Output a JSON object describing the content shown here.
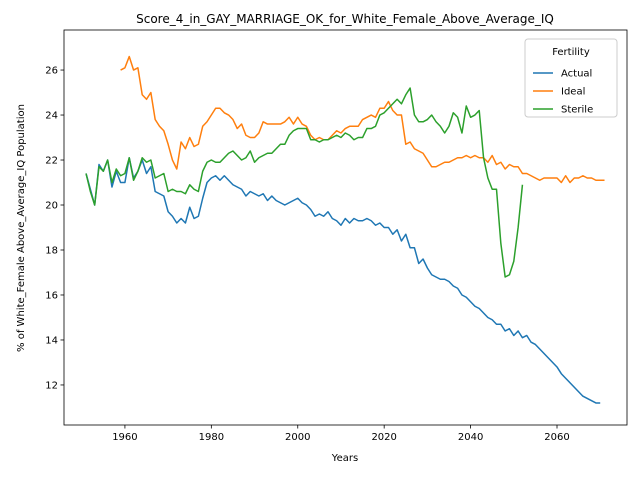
{
  "chart_data": {
    "type": "line",
    "title": "Score_4_in_GAY_MARRIAGE_OK_for_White_Female_Above_Average_IQ",
    "xlabel": "Years",
    "ylabel": "% of White_Female Above_Average_IQ Population",
    "legend_title": "Fertility",
    "legend": "upper right",
    "xlim": [
      1945.9,
      2076.2
    ],
    "ylim": [
      10.22,
      27.78
    ],
    "xticks": [
      1960,
      1980,
      2000,
      2020,
      2040,
      2060
    ],
    "yticks": [
      12,
      14,
      16,
      18,
      20,
      22,
      24,
      26
    ],
    "x": [
      1951,
      1952,
      1953,
      1954,
      1955,
      1956,
      1957,
      1958,
      1959,
      1960,
      1961,
      1962,
      1963,
      1964,
      1965,
      1966,
      1967,
      1968,
      1969,
      1970,
      1971,
      1972,
      1973,
      1974,
      1975,
      1976,
      1977,
      1978,
      1979,
      1980,
      1981,
      1982,
      1983,
      1984,
      1985,
      1986,
      1987,
      1988,
      1989,
      1990,
      1991,
      1992,
      1993,
      1994,
      1995,
      1996,
      1997,
      1998,
      1999,
      2000,
      2001,
      2002,
      2003,
      2004,
      2005,
      2006,
      2007,
      2008,
      2009,
      2010,
      2011,
      2012,
      2013,
      2014,
      2015,
      2016,
      2017,
      2018,
      2019,
      2020,
      2021,
      2022,
      2023,
      2024,
      2025,
      2026,
      2027,
      2028,
      2029,
      2030,
      2031,
      2032,
      2033,
      2034,
      2035,
      2036,
      2037,
      2038,
      2039,
      2040,
      2041,
      2042,
      2043,
      2044,
      2045,
      2046,
      2047,
      2048,
      2049,
      2050,
      2051,
      2052,
      2053,
      2054,
      2055,
      2056,
      2057,
      2058,
      2059,
      2060,
      2061,
      2062,
      2063,
      2064,
      2065,
      2066,
      2067,
      2068,
      2069,
      2070,
      2071
    ],
    "series": [
      {
        "name": "Actual",
        "color": "#1f77b4",
        "values": [
          21.4,
          20.7,
          20.0,
          21.8,
          21.5,
          22.0,
          20.8,
          21.5,
          21.0,
          21.0,
          22.1,
          21.2,
          21.5,
          22.0,
          21.4,
          21.7,
          20.6,
          20.5,
          20.4,
          19.7,
          19.5,
          19.2,
          19.4,
          19.2,
          19.9,
          19.4,
          19.5,
          20.3,
          21.0,
          21.2,
          21.3,
          21.1,
          21.3,
          21.1,
          20.9,
          20.8,
          20.7,
          20.4,
          20.6,
          20.5,
          20.4,
          20.5,
          20.2,
          20.4,
          20.2,
          20.1,
          20.0,
          20.1,
          20.2,
          20.3,
          20.1,
          20.0,
          19.8,
          19.5,
          19.6,
          19.5,
          19.7,
          19.4,
          19.3,
          19.1,
          19.4,
          19.2,
          19.4,
          19.3,
          19.3,
          19.4,
          19.3,
          19.1,
          19.2,
          19.0,
          19.0,
          18.7,
          18.9,
          18.4,
          18.7,
          18.1,
          18.1,
          17.4,
          17.6,
          17.2,
          16.9,
          16.8,
          16.7,
          16.7,
          16.6,
          16.4,
          16.3,
          16.0,
          15.9,
          15.7,
          15.5,
          15.4,
          15.2,
          15.0,
          14.9,
          14.7,
          14.7,
          14.4,
          14.5,
          14.2,
          14.4,
          14.1,
          14.2,
          13.9,
          13.8,
          13.6,
          13.4,
          13.2,
          13.0,
          12.8,
          12.5,
          12.3,
          12.1,
          11.9,
          11.7,
          11.5,
          11.4,
          11.3,
          11.2,
          11.2,
          null
        ]
      },
      {
        "name": "Ideal",
        "color": "#ff7f0e",
        "values": [
          null,
          null,
          null,
          null,
          null,
          null,
          null,
          null,
          26.0,
          26.1,
          26.6,
          26.0,
          26.1,
          24.9,
          24.7,
          25.0,
          23.8,
          23.5,
          23.3,
          22.7,
          22.0,
          21.6,
          22.8,
          22.5,
          23.0,
          22.6,
          22.7,
          23.5,
          23.7,
          24.0,
          24.3,
          24.3,
          24.1,
          24.0,
          23.8,
          23.4,
          23.6,
          23.1,
          23.0,
          23.0,
          23.2,
          23.7,
          23.6,
          23.6,
          23.6,
          23.6,
          23.7,
          23.9,
          23.6,
          23.9,
          23.6,
          23.5,
          23.1,
          22.9,
          23.0,
          22.9,
          22.9,
          23.1,
          23.3,
          23.2,
          23.4,
          23.5,
          23.5,
          23.5,
          23.8,
          23.9,
          24.0,
          23.9,
          24.3,
          24.3,
          24.6,
          24.2,
          24.0,
          24.0,
          22.7,
          22.8,
          22.5,
          22.4,
          22.3,
          22.0,
          21.7,
          21.7,
          21.8,
          21.9,
          21.9,
          22.0,
          22.1,
          22.1,
          22.2,
          22.1,
          22.2,
          22.1,
          22.1,
          21.9,
          22.2,
          21.8,
          21.9,
          21.6,
          21.8,
          21.7,
          21.7,
          21.4,
          21.4,
          21.3,
          21.2,
          21.1,
          21.2,
          21.2,
          21.2,
          21.2,
          21.0,
          21.3,
          21.0,
          21.2,
          21.2,
          21.3,
          21.2,
          21.2,
          21.1,
          21.1,
          21.1
        ]
      },
      {
        "name": "Sterile",
        "color": "#2ca02c",
        "values": [
          21.4,
          20.6,
          20.0,
          21.7,
          21.5,
          22.0,
          21.0,
          21.6,
          21.3,
          21.4,
          22.1,
          21.1,
          21.5,
          22.1,
          21.9,
          22.0,
          21.2,
          21.3,
          21.4,
          20.6,
          20.7,
          20.6,
          20.6,
          20.5,
          20.9,
          20.7,
          20.6,
          21.5,
          21.9,
          22.0,
          21.9,
          21.9,
          22.1,
          22.3,
          22.4,
          22.2,
          22.0,
          22.1,
          22.4,
          21.9,
          22.1,
          22.2,
          22.3,
          22.3,
          22.5,
          22.7,
          22.7,
          23.1,
          23.3,
          23.4,
          23.4,
          23.4,
          22.9,
          22.9,
          22.8,
          22.9,
          22.9,
          23.0,
          23.1,
          23.0,
          23.2,
          23.1,
          22.9,
          23.0,
          23.0,
          23.4,
          23.4,
          23.5,
          24.0,
          24.1,
          24.3,
          24.5,
          24.7,
          24.5,
          24.9,
          25.2,
          24.0,
          23.7,
          23.7,
          23.8,
          24.0,
          23.7,
          23.5,
          23.2,
          23.5,
          24.1,
          23.9,
          23.2,
          24.4,
          23.9,
          24.0,
          24.2,
          22.1,
          21.2,
          20.7,
          20.7,
          18.3,
          16.8,
          16.9,
          17.5,
          19.0,
          20.9,
          null,
          null,
          null,
          null,
          null,
          null,
          null,
          null,
          null,
          null,
          null,
          null,
          null,
          null,
          null,
          null,
          null,
          null,
          null
        ]
      }
    ]
  }
}
